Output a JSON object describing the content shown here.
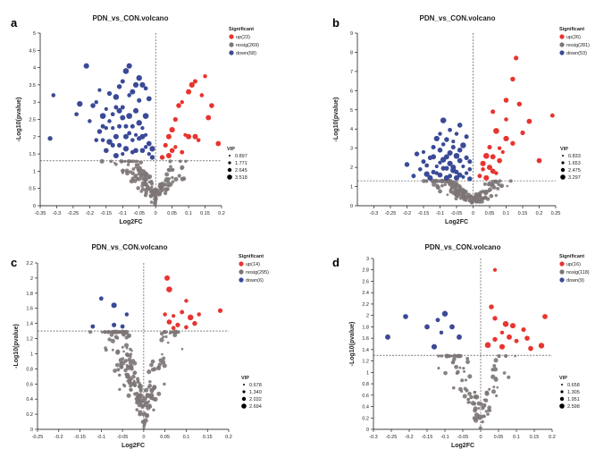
{
  "colors": {
    "up": "#e8342f",
    "nosig": "#7d7575",
    "down": "#3b4a96",
    "axis": "#000000"
  },
  "chart_data": [
    {
      "panel": "a",
      "type": "scatter",
      "title": "PDN_vs_CON.volcano",
      "xlabel": "Log2FC",
      "ylabel": "-Log10(pvalue)",
      "xlim": [
        -0.35,
        0.2
      ],
      "ylim": [
        0,
        5
      ],
      "xticks": [
        -0.35,
        -0.3,
        -0.25,
        -0.2,
        -0.15,
        -0.1,
        -0.05,
        0,
        0.05,
        0.1,
        0.15,
        0.2
      ],
      "xtick_labels": [
        "-0.35",
        "-0.3",
        "-0.25",
        "-0.2",
        "-0.15",
        "-0.1",
        "-0.05",
        "0",
        "0.05",
        "0.1",
        "0.15",
        "0.2"
      ],
      "yticks": [
        0,
        0.5,
        1,
        1.5,
        2,
        2.5,
        3,
        3.5,
        4,
        4.5,
        5
      ],
      "ytick_labels": [
        "0",
        "0.5",
        "1",
        "1.5",
        "2",
        "2.5",
        "3",
        "3.5",
        "4",
        "4.5",
        "5"
      ],
      "threshold_y": 1.3,
      "threshold_x": 0,
      "legend_title": "Significant",
      "legend": [
        {
          "key": "up",
          "label": "up(23)"
        },
        {
          "key": "nosig",
          "label": "nosig(269)"
        },
        {
          "key": "down",
          "label": "down(68)"
        }
      ],
      "vip_title": "VIP",
      "vip_labels": [
        "0.897",
        "1.771",
        "2.645",
        "3.518"
      ],
      "seed": 11,
      "n_nosig": 150,
      "up": [
        [
          0.02,
          1.4
        ],
        [
          0.03,
          1.75
        ],
        [
          0.04,
          2.0
        ],
        [
          0.05,
          2.2
        ],
        [
          0.06,
          2.5
        ],
        [
          0.07,
          2.9
        ],
        [
          0.08,
          3.0
        ],
        [
          0.09,
          2.05
        ],
        [
          0.1,
          3.3
        ],
        [
          0.11,
          3.5
        ],
        [
          0.12,
          3.6
        ],
        [
          0.13,
          1.9
        ],
        [
          0.14,
          3.2
        ],
        [
          0.15,
          3.75
        ],
        [
          0.16,
          2.55
        ],
        [
          0.17,
          2.9
        ],
        [
          0.19,
          1.8
        ],
        [
          0.05,
          1.6
        ],
        [
          0.08,
          1.55
        ],
        [
          0.12,
          2.0
        ],
        [
          0.04,
          1.45
        ],
        [
          0.06,
          1.7
        ],
        [
          0.1,
          2.0
        ]
      ],
      "down": [
        [
          -0.32,
          1.95
        ],
        [
          -0.31,
          3.2
        ],
        [
          -0.24,
          2.65
        ],
        [
          -0.23,
          2.95
        ],
        [
          -0.21,
          4.05
        ],
        [
          -0.19,
          2.9
        ],
        [
          -0.18,
          3.0
        ],
        [
          -0.17,
          3.35
        ],
        [
          -0.16,
          2.6
        ],
        [
          -0.15,
          2.8
        ],
        [
          -0.14,
          3.25
        ],
        [
          -0.12,
          3.15
        ],
        [
          -0.11,
          3.45
        ],
        [
          -0.1,
          3.6
        ],
        [
          -0.09,
          3.9
        ],
        [
          -0.08,
          4.05
        ],
        [
          -0.07,
          3.3
        ],
        [
          -0.06,
          3.5
        ],
        [
          -0.05,
          3.7
        ],
        [
          -0.04,
          3.5
        ],
        [
          -0.03,
          3.4
        ],
        [
          -0.02,
          3.1
        ],
        [
          -0.17,
          2.15
        ],
        [
          -0.16,
          1.9
        ],
        [
          -0.15,
          1.6
        ],
        [
          -0.14,
          2.45
        ],
        [
          -0.13,
          2.25
        ],
        [
          -0.12,
          2.0
        ],
        [
          -0.11,
          1.75
        ],
        [
          -0.1,
          2.55
        ],
        [
          -0.09,
          2.3
        ],
        [
          -0.08,
          2.1
        ],
        [
          -0.07,
          1.9
        ],
        [
          -0.06,
          1.6
        ],
        [
          -0.05,
          2.4
        ],
        [
          -0.04,
          2.0
        ],
        [
          -0.03,
          1.7
        ],
        [
          -0.02,
          1.5
        ],
        [
          -0.01,
          1.4
        ],
        [
          -0.13,
          2.65
        ],
        [
          -0.1,
          2.85
        ],
        [
          -0.08,
          2.6
        ],
        [
          -0.06,
          2.75
        ],
        [
          -0.05,
          3.05
        ],
        [
          -0.04,
          2.25
        ],
        [
          -0.03,
          2.05
        ],
        [
          -0.07,
          1.55
        ],
        [
          -0.09,
          1.65
        ],
        [
          -0.11,
          2.3
        ],
        [
          -0.12,
          1.45
        ],
        [
          -0.14,
          1.85
        ],
        [
          -0.18,
          1.9
        ],
        [
          -0.2,
          2.45
        ],
        [
          -0.15,
          2.25
        ],
        [
          -0.06,
          2.05
        ],
        [
          -0.08,
          3.2
        ],
        [
          -0.1,
          1.5
        ],
        [
          -0.02,
          1.8
        ],
        [
          -0.04,
          1.6
        ],
        [
          -0.05,
          1.95
        ],
        [
          -0.07,
          2.3
        ],
        [
          -0.09,
          2.0
        ],
        [
          -0.11,
          2.75
        ],
        [
          -0.13,
          1.75
        ],
        [
          -0.16,
          2.3
        ],
        [
          -0.12,
          2.85
        ],
        [
          -0.03,
          2.6
        ],
        [
          -0.01,
          1.65
        ]
      ]
    },
    {
      "panel": "b",
      "type": "scatter",
      "title": "PDN_vs_CON.volcano",
      "xlabel": "Log2FC",
      "ylabel": "-Log10(pvalue)",
      "xlim": [
        -0.35,
        0.25
      ],
      "ylim": [
        0,
        9
      ],
      "xticks": [
        -0.3,
        -0.25,
        -0.2,
        -0.15,
        -0.1,
        -0.05,
        0,
        0.05,
        0.1,
        0.15,
        0.2,
        0.25
      ],
      "xtick_labels": [
        "-0.3",
        "-0.25",
        "-0.2",
        "-0.15",
        "-0.1",
        "-0.05",
        "0",
        "0.05",
        "0.1",
        "0.15",
        "0.2",
        "0.25"
      ],
      "yticks": [
        0,
        1,
        2,
        3,
        4,
        5,
        6,
        7,
        8,
        9
      ],
      "ytick_labels": [
        "0",
        "1",
        "2",
        "3",
        "4",
        "5",
        "6",
        "7",
        "8",
        "9"
      ],
      "threshold_y": 1.3,
      "threshold_x": 0,
      "legend_title": "Significant",
      "legend": [
        {
          "key": "up",
          "label": "up(26)"
        },
        {
          "key": "nosig",
          "label": "nosig(281)"
        },
        {
          "key": "down",
          "label": "down(53)"
        }
      ],
      "vip_title": "VIP",
      "vip_labels": [
        "0.833",
        "1.653",
        "2.475",
        "3.297"
      ],
      "seed": 23,
      "n_nosig": 170,
      "up": [
        [
          0.13,
          7.7
        ],
        [
          0.12,
          6.6
        ],
        [
          0.1,
          5.5
        ],
        [
          0.14,
          5.3
        ],
        [
          0.06,
          4.9
        ],
        [
          0.1,
          4.5
        ],
        [
          0.24,
          4.7
        ],
        [
          0.17,
          4.4
        ],
        [
          0.15,
          3.8
        ],
        [
          0.1,
          3.5
        ],
        [
          0.12,
          3.25
        ],
        [
          0.07,
          3.9
        ],
        [
          0.05,
          3.05
        ],
        [
          0.04,
          2.6
        ],
        [
          0.03,
          2.2
        ],
        [
          0.05,
          2.0
        ],
        [
          0.06,
          1.8
        ],
        [
          0.08,
          2.35
        ],
        [
          0.09,
          2.8
        ],
        [
          0.2,
          2.35
        ],
        [
          0.02,
          1.55
        ],
        [
          0.04,
          1.45
        ],
        [
          0.07,
          1.7
        ],
        [
          0.03,
          1.9
        ],
        [
          0.06,
          2.55
        ],
        [
          0.08,
          3.0
        ]
      ],
      "down": [
        [
          -0.09,
          4.45
        ],
        [
          -0.04,
          4.2
        ],
        [
          -0.07,
          3.95
        ],
        [
          -0.05,
          3.75
        ],
        [
          -0.02,
          3.6
        ],
        [
          -0.11,
          3.5
        ],
        [
          -0.08,
          3.45
        ],
        [
          -0.06,
          3.35
        ],
        [
          -0.12,
          3.05
        ],
        [
          -0.15,
          2.8
        ],
        [
          -0.17,
          2.7
        ],
        [
          -0.03,
          3.15
        ],
        [
          -0.1,
          2.9
        ],
        [
          -0.07,
          2.75
        ],
        [
          -0.05,
          2.6
        ],
        [
          -0.13,
          2.5
        ],
        [
          -0.09,
          2.4
        ],
        [
          -0.04,
          2.35
        ],
        [
          -0.01,
          2.3
        ],
        [
          -0.2,
          2.15
        ],
        [
          -0.14,
          2.1
        ],
        [
          -0.11,
          2.05
        ],
        [
          -0.08,
          1.95
        ],
        [
          -0.06,
          1.85
        ],
        [
          -0.16,
          1.9
        ],
        [
          -0.12,
          1.75
        ],
        [
          -0.02,
          1.7
        ],
        [
          -0.1,
          1.6
        ],
        [
          -0.07,
          1.55
        ],
        [
          -0.05,
          1.45
        ],
        [
          -0.18,
          1.55
        ],
        [
          -0.03,
          1.5
        ],
        [
          -0.01,
          1.4
        ],
        [
          -0.13,
          1.45
        ],
        [
          -0.09,
          1.95
        ],
        [
          -0.04,
          2.9
        ],
        [
          -0.06,
          3.05
        ],
        [
          -0.08,
          2.55
        ],
        [
          -0.1,
          2.25
        ],
        [
          -0.12,
          2.55
        ],
        [
          -0.03,
          2.05
        ],
        [
          -0.07,
          2.2
        ],
        [
          -0.05,
          1.75
        ],
        [
          -0.15,
          2.3
        ],
        [
          -0.11,
          1.7
        ],
        [
          -0.02,
          2.5
        ],
        [
          -0.14,
          1.65
        ],
        [
          -0.09,
          3.2
        ],
        [
          -0.01,
          1.9
        ],
        [
          -0.06,
          2.0
        ],
        [
          -0.04,
          1.6
        ],
        [
          -0.08,
          1.45
        ],
        [
          -0.1,
          3.75
        ]
      ]
    },
    {
      "panel": "c",
      "type": "scatter",
      "title": "PDN_vs_CON.volcano",
      "xlabel": "Log2FC",
      "ylabel": "-Log10(pvalue)",
      "xlim": [
        -0.25,
        0.2
      ],
      "ylim": [
        0,
        2.2
      ],
      "xticks": [
        -0.25,
        -0.2,
        -0.15,
        -0.1,
        -0.05,
        0,
        0.05,
        0.1,
        0.15,
        0.2
      ],
      "xtick_labels": [
        "-0.25",
        "-0.2",
        "-0.15",
        "-0.1",
        "-0.05",
        "0",
        "0.05",
        "0.1",
        "0.15",
        "0.2"
      ],
      "yticks": [
        0,
        0.2,
        0.4,
        0.6,
        0.8,
        1,
        1.2,
        1.4,
        1.6,
        1.8,
        2,
        2.2
      ],
      "ytick_labels": [
        "0",
        "0.2",
        "0.4",
        "0.6",
        "0.8",
        "1",
        "1.2",
        "1.4",
        "1.6",
        "1.8",
        "2",
        "2.2"
      ],
      "threshold_y": 1.3,
      "threshold_x": 0,
      "legend_title": "Significant",
      "legend": [
        {
          "key": "up",
          "label": "up(14)"
        },
        {
          "key": "nosig",
          "label": "nosig(295)"
        },
        {
          "key": "down",
          "label": "down(6)"
        }
      ],
      "vip_title": "VIP",
      "vip_labels": [
        "0.678",
        "1.340",
        "2.032",
        "2.694"
      ],
      "seed": 37,
      "n_nosig": 230,
      "up": [
        [
          0.055,
          2.0
        ],
        [
          0.06,
          1.85
        ],
        [
          0.1,
          1.7
        ],
        [
          0.18,
          1.57
        ],
        [
          0.05,
          1.52
        ],
        [
          0.07,
          1.5
        ],
        [
          0.09,
          1.55
        ],
        [
          0.11,
          1.48
        ],
        [
          0.13,
          1.52
        ],
        [
          0.06,
          1.42
        ],
        [
          0.08,
          1.38
        ],
        [
          0.1,
          1.35
        ],
        [
          0.07,
          1.34
        ],
        [
          0.12,
          1.4
        ]
      ],
      "down": [
        [
          -0.1,
          1.73
        ],
        [
          -0.07,
          1.64
        ],
        [
          -0.04,
          1.52
        ],
        [
          -0.07,
          1.38
        ],
        [
          -0.05,
          1.36
        ],
        [
          -0.12,
          1.36
        ]
      ]
    },
    {
      "panel": "d",
      "type": "scatter",
      "title": "PDN_vs_CON.volcano",
      "xlabel": "Log2FC",
      "ylabel": "-Log10(pvalue)",
      "xlim": [
        -0.3,
        0.2
      ],
      "ylim": [
        0,
        3
      ],
      "xticks": [
        -0.3,
        -0.25,
        -0.2,
        -0.15,
        -0.1,
        -0.05,
        0,
        0.05,
        0.1,
        0.15,
        0.2
      ],
      "xtick_labels": [
        "-0.3",
        "-0.25",
        "-0.2",
        "-0.15",
        "-0.1",
        "-0.05",
        "0",
        "0.05",
        "0.1",
        "0.15",
        "0.2"
      ],
      "yticks": [
        0,
        0.2,
        0.4,
        0.6,
        0.8,
        1,
        1.2,
        1.4,
        1.6,
        1.8,
        2,
        2.2,
        2.4,
        2.6,
        2.8,
        3
      ],
      "ytick_labels": [
        "0",
        "0.2",
        "0.4",
        "0.6",
        "0.8",
        "1",
        "1.2",
        "1.4",
        "1.6",
        "1.8",
        "2",
        "2.2",
        "2.4",
        "2.6",
        "2.8",
        "3"
      ],
      "threshold_y": 1.3,
      "threshold_x": 0,
      "legend_title": "Significant",
      "legend": [
        {
          "key": "up",
          "label": "up(16)"
        },
        {
          "key": "nosig",
          "label": "nosig(118)"
        },
        {
          "key": "down",
          "label": "down(9)"
        }
      ],
      "vip_title": "VIP",
      "vip_labels": [
        "0.658",
        "1.305",
        "1.951",
        "2.598"
      ],
      "seed": 53,
      "n_nosig": 100,
      "up": [
        [
          0.04,
          2.8
        ],
        [
          0.03,
          2.15
        ],
        [
          0.04,
          1.95
        ],
        [
          0.07,
          1.85
        ],
        [
          0.09,
          1.82
        ],
        [
          0.06,
          1.7
        ],
        [
          0.12,
          1.75
        ],
        [
          0.08,
          1.62
        ],
        [
          0.04,
          1.58
        ],
        [
          0.1,
          1.55
        ],
        [
          0.13,
          1.6
        ],
        [
          0.18,
          1.98
        ],
        [
          0.02,
          1.48
        ],
        [
          0.06,
          1.45
        ],
        [
          0.14,
          1.42
        ],
        [
          0.17,
          1.47
        ]
      ],
      "down": [
        [
          -0.21,
          1.98
        ],
        [
          -0.1,
          2.03
        ],
        [
          -0.12,
          1.92
        ],
        [
          -0.15,
          1.8
        ],
        [
          -0.08,
          1.8
        ],
        [
          -0.11,
          1.7
        ],
        [
          -0.06,
          1.62
        ],
        [
          -0.13,
          1.45
        ],
        [
          -0.26,
          1.62
        ]
      ]
    }
  ]
}
